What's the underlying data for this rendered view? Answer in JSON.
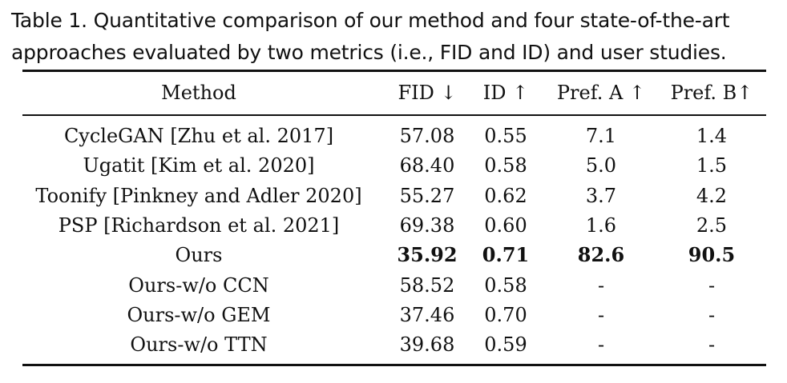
{
  "caption": "Table 1.  Quantitative comparison of our method and four state-of-the-art approaches evaluated by two metrics (i.e., FID and ID) and user studies.",
  "headers": [
    "Method",
    "FID ↓",
    "ID ↑",
    "Pref. A ↑",
    "Pref. B↑"
  ],
  "rows": [
    {
      "method": "CycleGAN [Zhu et al. 2017]",
      "fid": "57.08",
      "id": "0.55",
      "pref_a": "7.1",
      "pref_b": "1.4",
      "bold": false
    },
    {
      "method": "Ugatit [Kim et al. 2020]",
      "fid": "68.40",
      "id": "0.58",
      "pref_a": "5.0",
      "pref_b": "1.5",
      "bold": false
    },
    {
      "method": "Toonify [Pinkney and Adler 2020]",
      "fid": "55.27",
      "id": "0.62",
      "pref_a": "3.7",
      "pref_b": "4.2",
      "bold": false
    },
    {
      "method": "PSP [Richardson et al. 2021]",
      "fid": "69.38",
      "id": "0.60",
      "pref_a": "1.6",
      "pref_b": "2.5",
      "bold": false
    },
    {
      "method": "Ours",
      "fid": "35.92",
      "id": "0.71",
      "pref_a": "82.6",
      "pref_b": "90.5",
      "bold": true
    },
    {
      "method": "Ours-w/o CCN",
      "fid": "58.52",
      "id": "0.58",
      "pref_a": "-",
      "pref_b": "-",
      "bold": false
    },
    {
      "method": "Ours-w/o GEM",
      "fid": "37.46",
      "id": "0.70",
      "pref_a": "-",
      "pref_b": "-",
      "bold": false
    },
    {
      "method": "Ours-w/o TTN",
      "fid": "39.68",
      "id": "0.59",
      "pref_a": "-",
      "pref_b": "-",
      "bold": false
    }
  ]
}
